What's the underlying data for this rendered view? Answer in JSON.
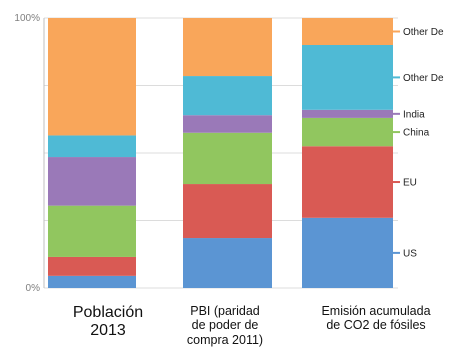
{
  "chart_data": {
    "type": "bar",
    "stacked": true,
    "normalized": true,
    "categories": [
      "Población\n2013",
      "PBI (paridad\nde poder de\ncompra 2011)",
      "Emisión acumulada\nde CO2 de fósiles"
    ],
    "y_ticks": [
      "0%",
      "100%"
    ],
    "ylim": [
      0,
      100
    ],
    "grid": true,
    "legend_position": "right",
    "series": [
      {
        "name": "US",
        "color": "#5b95d3",
        "values": [
          4.5,
          18.5,
          26
        ]
      },
      {
        "name": "EU",
        "color": "#d95a54",
        "values": [
          7,
          20,
          26.5
        ]
      },
      {
        "name": "China",
        "color": "#91c65f",
        "values": [
          19,
          19,
          10.5
        ]
      },
      {
        "name": "India",
        "color": "#9a79b8",
        "values": [
          18,
          6.5,
          3
        ]
      },
      {
        "name": "Other De",
        "color": "#4fbad5",
        "values": [
          8,
          14.5,
          24
        ]
      },
      {
        "name": "Other De",
        "color": "#f9a65a",
        "values": [
          43.5,
          21.5,
          10
        ]
      }
    ]
  }
}
